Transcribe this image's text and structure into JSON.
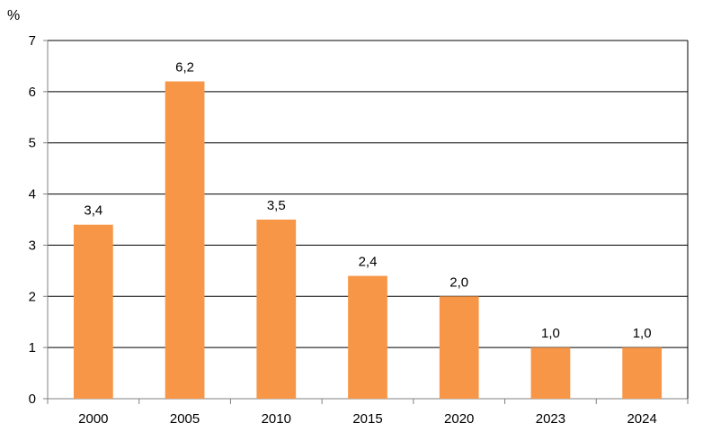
{
  "chart_data": {
    "type": "bar",
    "ylabel": "%",
    "categories": [
      "2000",
      "2005",
      "2010",
      "2015",
      "2020",
      "2023",
      "2024"
    ],
    "values": [
      3.4,
      6.2,
      3.5,
      2.4,
      2.0,
      1.0,
      1.0
    ],
    "data_labels": [
      "3,4",
      "6,2",
      "3,5",
      "2,4",
      "2,0",
      "1,0",
      "1,0"
    ],
    "y_ticks": [
      "0",
      "1",
      "2",
      "3",
      "4",
      "5",
      "6",
      "7"
    ],
    "ylim": [
      0,
      7
    ],
    "grid": true,
    "legend": "none",
    "bar_color": "#F79646"
  }
}
